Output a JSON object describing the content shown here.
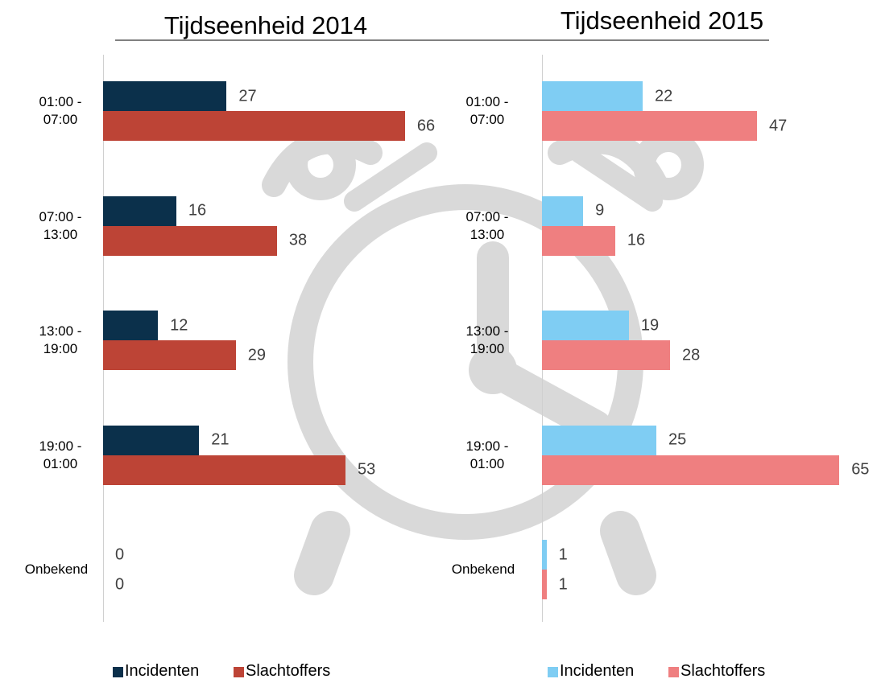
{
  "chart_data": [
    {
      "type": "bar",
      "title": "Tijdseenheid 2014",
      "categories": [
        "01:00 - 07:00",
        "07:00 - 13:00",
        "13:00 - 19:00",
        "19:00 - 01:00",
        "Onbekend"
      ],
      "series": [
        {
          "name": "Incidenten",
          "color": "#0b304b",
          "values": [
            27,
            16,
            12,
            21,
            0
          ]
        },
        {
          "name": "Slachtoffers",
          "color": "#bd4436",
          "values": [
            66,
            38,
            29,
            53,
            0
          ]
        }
      ]
    },
    {
      "type": "bar",
      "title": "Tijdseenheid 2015",
      "categories": [
        "01:00 - 07:00",
        "07:00 - 13:00",
        "13:00 - 19:00",
        "19:00 - 01:00",
        "Onbekend"
      ],
      "series": [
        {
          "name": "Incidenten",
          "color": "#7fcdf3",
          "values": [
            22,
            9,
            19,
            25,
            1
          ]
        },
        {
          "name": "Slachtoffers",
          "color": "#ef7f80",
          "values": [
            47,
            16,
            28,
            65,
            1
          ]
        }
      ]
    }
  ]
}
